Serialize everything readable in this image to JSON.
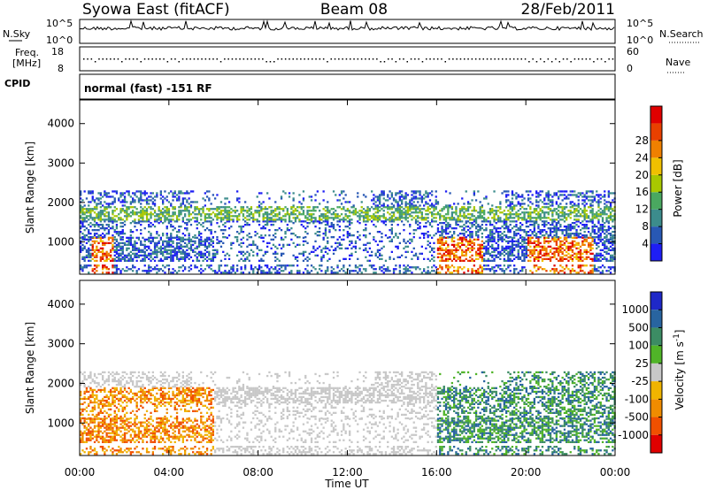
{
  "header": {
    "station": "Syowa East (fitACF)",
    "beam": "Beam 08",
    "date": "28/Feb/2011"
  },
  "top_panel": {
    "left_label": "N.Sky",
    "right_label": "N.Search",
    "left_ticks": [
      "10^5",
      "10^0"
    ],
    "right_ticks": [
      "10^5",
      "10^0"
    ]
  },
  "freq_panel": {
    "left_label_1": "Freq.",
    "left_label_2": "[MHz]",
    "left_ticks": [
      "18",
      "8"
    ],
    "right_label": "Nave",
    "right_ticks": [
      "60",
      "0"
    ]
  },
  "cpid": {
    "label": "CPID",
    "text": "normal (fast) -151 RF"
  },
  "chart_data": [
    {
      "type": "heatmap",
      "title": "",
      "xlabel": "Time UT",
      "ylabel": "Slant Range [km]",
      "x_ticks": [
        "00:00",
        "04:00",
        "08:00",
        "12:00",
        "16:00",
        "20:00",
        "00:00"
      ],
      "y_ticks": [
        "1000",
        "2000",
        "3000",
        "4000"
      ],
      "xlim_hours": [
        0,
        24
      ],
      "ylim_km": [
        180,
        4600
      ],
      "colorbar": {
        "label": "Power [dB]",
        "ticks": [
          "4",
          "8",
          "12",
          "16",
          "20",
          "24",
          "28"
        ],
        "colors": [
          "#1e1ef5",
          "#2858b4",
          "#3c8c8c",
          "#4aa860",
          "#a8c800",
          "#f0c000",
          "#f08000",
          "#e84000",
          "#e00000"
        ]
      }
    },
    {
      "type": "heatmap",
      "title": "",
      "xlabel": "Time UT",
      "ylabel": "Slant Range [km]",
      "x_ticks": [
        "00:00",
        "04:00",
        "08:00",
        "12:00",
        "16:00",
        "20:00",
        "00:00"
      ],
      "y_ticks": [
        "1000",
        "2000",
        "3000",
        "4000"
      ],
      "xlim_hours": [
        0,
        24
      ],
      "ylim_km": [
        180,
        4600
      ],
      "colorbar": {
        "label": "Velocity [m s^-1]",
        "ticks": [
          "1000",
          "500",
          "100",
          "25",
          "-25",
          "-100",
          "-500",
          "-1000"
        ],
        "colors": [
          "#1e28c8",
          "#2864a0",
          "#3c8c64",
          "#50b428",
          "#c8c8c8",
          "#f0b400",
          "#f08c00",
          "#f05000",
          "#e00000"
        ]
      }
    }
  ]
}
